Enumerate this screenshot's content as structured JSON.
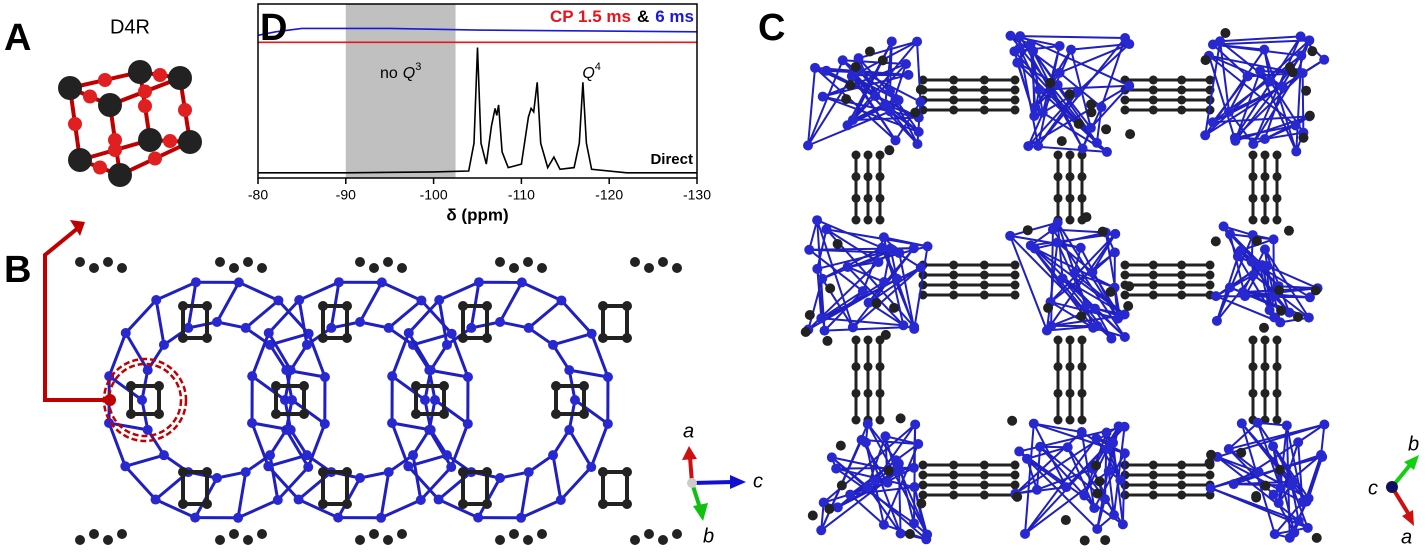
{
  "panels": {
    "A": {
      "label": "A",
      "title": "D4R"
    },
    "B": {
      "label": "B",
      "axes": [
        "a",
        "c",
        "b"
      ]
    },
    "C": {
      "label": "C",
      "axes": [
        "b",
        "c",
        "a"
      ]
    }
  },
  "chart_data": {
    "type": "line",
    "panel_label": "D",
    "x_label": "δ (ppm)",
    "xlim": [
      -80,
      -130
    ],
    "xticks": [
      -80,
      -90,
      -100,
      -110,
      -120,
      -130
    ],
    "ylim": [
      0,
      1
    ],
    "legend_joiner": "&",
    "series": [
      {
        "name": "CP 1.5 ms",
        "color": "#e8141b",
        "x": [
          -80,
          -82,
          -85,
          -95,
          -105,
          -130
        ],
        "values": [
          0.78,
          0.78,
          0.78,
          0.78,
          0.78,
          0.78
        ]
      },
      {
        "name": "6 ms",
        "color": "#1a1ad6",
        "x": [
          -80,
          -82,
          -85,
          -95,
          -105,
          -130
        ],
        "values": [
          0.82,
          0.84,
          0.86,
          0.86,
          0.85,
          0.84
        ]
      },
      {
        "name": "Direct",
        "color": "#000000",
        "x": [
          -80,
          -90,
          -100,
          -104,
          -104.6,
          -105,
          -105.4,
          -106,
          -106.6,
          -107,
          -107.2,
          -107.4,
          -107.8,
          -108.5,
          -110,
          -110.8,
          -111.1,
          -111.4,
          -111.8,
          -112.2,
          -113,
          -113.7,
          -114.4,
          -116,
          -116.6,
          -117,
          -117.4,
          -118,
          -122,
          -130
        ],
        "values": [
          0.03,
          0.03,
          0.035,
          0.04,
          0.2,
          0.75,
          0.2,
          0.08,
          0.3,
          0.4,
          0.36,
          0.42,
          0.15,
          0.06,
          0.08,
          0.35,
          0.4,
          0.38,
          0.55,
          0.2,
          0.06,
          0.12,
          0.05,
          0.06,
          0.2,
          0.55,
          0.2,
          0.05,
          0.03,
          0.03
        ]
      }
    ],
    "shaded_region": {
      "x": [
        -90,
        -102.5
      ],
      "color": "#c0c0c0"
    },
    "annotations": [
      {
        "text": "no",
        "symbol": "Q",
        "superscript": "3"
      },
      {
        "symbol": "Q",
        "superscript": "4"
      }
    ]
  }
}
